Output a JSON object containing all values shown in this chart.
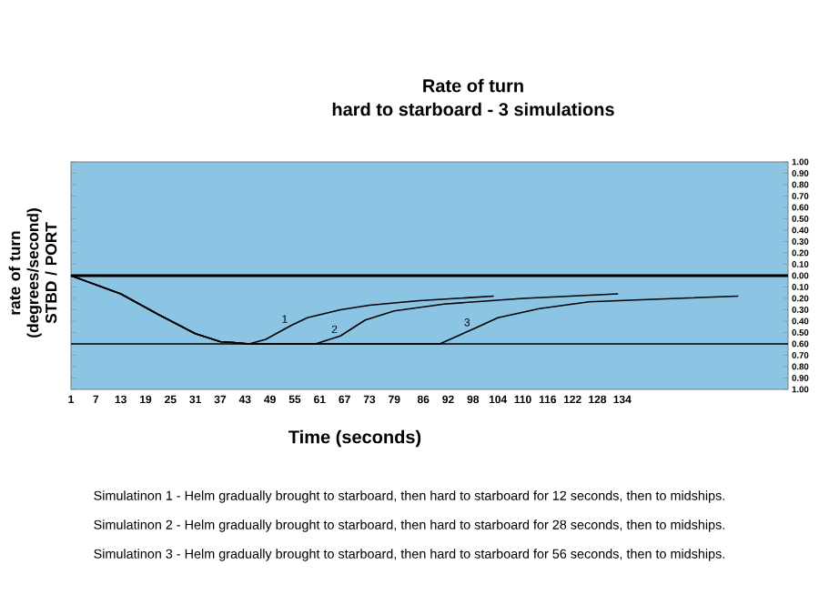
{
  "chart_data": {
    "type": "line",
    "title": "Rate of turn",
    "subtitle": "hard to starboard - 3 simulations",
    "xlabel": "Time (seconds)",
    "ylabel": "rate of turn (degrees/second) STBD / PORT",
    "xlim": [
      1,
      174
    ],
    "xticks": [
      1,
      7,
      13,
      19,
      25,
      31,
      37,
      43,
      49,
      55,
      61,
      67,
      73,
      79,
      86,
      92,
      98,
      104,
      110,
      116,
      122,
      128,
      134
    ],
    "ylim": [
      -1,
      1
    ],
    "yticks": [
      {
        "value": 1,
        "label": "1.00"
      },
      {
        "value": 0.9,
        "label": "0.90"
      },
      {
        "value": 0.8,
        "label": "0.80"
      },
      {
        "value": 0.7,
        "label": "0.70"
      },
      {
        "value": 0.6,
        "label": "0.60"
      },
      {
        "value": 0.5,
        "label": "0.50"
      },
      {
        "value": 0.4,
        "label": "0.40"
      },
      {
        "value": 0.3,
        "label": "0.30"
      },
      {
        "value": 0.2,
        "label": "0.20"
      },
      {
        "value": 0.1,
        "label": "0.10"
      },
      {
        "value": 0,
        "label": "0.00"
      },
      {
        "value": -0.1,
        "label": "0.10"
      },
      {
        "value": -0.2,
        "label": "0.20"
      },
      {
        "value": -0.3,
        "label": "0.30"
      },
      {
        "value": -0.4,
        "label": "0.40"
      },
      {
        "value": -0.5,
        "label": "0.50"
      },
      {
        "value": -0.6,
        "label": "0.60"
      },
      {
        "value": -0.7,
        "label": "0.70"
      },
      {
        "value": -0.8,
        "label": "0.80"
      },
      {
        "value": -0.9,
        "label": "0.90"
      },
      {
        "value": -1,
        "label": "1.00"
      }
    ],
    "series": [
      {
        "color": "#000000",
        "x": [
          1,
          13,
          22,
          31,
          37,
          44,
          48,
          54,
          58,
          66,
          73,
          85,
          103
        ],
        "values": [
          0,
          -0.16,
          -0.34,
          -0.51,
          -0.58,
          -0.6,
          -0.56,
          -0.44,
          -0.37,
          -0.3,
          -0.26,
          -0.22,
          -0.18
        ]
      },
      {
        "color": "#000000",
        "x": [
          1,
          13,
          22,
          31,
          37,
          44,
          60,
          66,
          72,
          79,
          91,
          110,
          133
        ],
        "values": [
          0,
          -0.16,
          -0.34,
          -0.51,
          -0.58,
          -0.6,
          -0.6,
          -0.53,
          -0.39,
          -0.31,
          -0.25,
          -0.2,
          -0.16
        ]
      },
      {
        "color": "#000000",
        "x": [
          1,
          13,
          22,
          31,
          37,
          44,
          90,
          98,
          104,
          114,
          126,
          140,
          162
        ],
        "values": [
          0,
          -0.16,
          -0.34,
          -0.51,
          -0.58,
          -0.6,
          -0.6,
          -0.47,
          -0.37,
          -0.29,
          -0.23,
          -0.21,
          -0.18
        ]
      }
    ],
    "ref_lines": [
      {
        "axis": "y",
        "value": 0,
        "color": "#000000"
      },
      {
        "axis": "y",
        "value": -0.6,
        "color": "#000000"
      }
    ],
    "annotations": [
      {
        "text": "1",
        "x": 54,
        "y": -0.44
      },
      {
        "text": "2",
        "x": 66,
        "y": -0.53
      },
      {
        "text": "3",
        "x": 98,
        "y": -0.47
      },
      "Simulatinon 1 - Helm gradually brought to starboard, then hard to starboard for 12 seconds, then to midships.",
      "Simulatinon 2 - Helm gradually brought to starboard, then hard to starboard for 28 seconds, then to midships.",
      "Simulatinon 3 - Helm gradually brought to starboard, then hard to starboard for 56 seconds, then to midships."
    ],
    "grid": false,
    "marker": "none",
    "line_style": "solid"
  }
}
